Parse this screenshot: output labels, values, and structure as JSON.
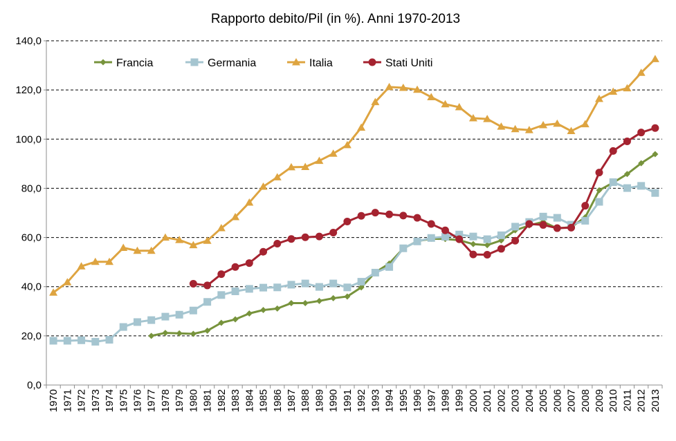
{
  "chart_data": {
    "type": "line",
    "title": "Rapporto debito/Pil (in %). Anni 1970-2013",
    "xlabel": "",
    "ylabel": "",
    "ylim": [
      0,
      140
    ],
    "yticks": [
      "0,0",
      "20,0",
      "40,0",
      "60,0",
      "80,0",
      "100,0",
      "120,0",
      "140,0"
    ],
    "grid": true,
    "legend_position": "top",
    "categories": [
      "1970",
      "1971",
      "1972",
      "1973",
      "1974",
      "1975",
      "1976",
      "1977",
      "1978",
      "1979",
      "1980",
      "1981",
      "1982",
      "1983",
      "1984",
      "1985",
      "1986",
      "1987",
      "1988",
      "1989",
      "1990",
      "1991",
      "1992",
      "1993",
      "1994",
      "1995",
      "1996",
      "1997",
      "1998",
      "1999",
      "2000",
      "2001",
      "2002",
      "2003",
      "2004",
      "2005",
      "2006",
      "2007",
      "2008",
      "2009",
      "2010",
      "2011",
      "2012",
      "2013"
    ],
    "series": [
      {
        "name": "Francia",
        "color": "#77933c",
        "marker": "diamond",
        "values": [
          null,
          null,
          null,
          null,
          null,
          null,
          null,
          20,
          21.2,
          21,
          20.8,
          22.1,
          25.3,
          26.7,
          29.1,
          30.5,
          31.1,
          33.3,
          33.3,
          34.2,
          35.3,
          36,
          39.7,
          45.8,
          49.4,
          55.5,
          58.5,
          59.5,
          59.4,
          58.9,
          57.3,
          56.9,
          58.8,
          62.9,
          64.9,
          66.4,
          63.7,
          64.2,
          68.2,
          79.2,
          82.3,
          85.8,
          90.2,
          93.9
        ]
      },
      {
        "name": "Germania",
        "color": "#a5c5d0",
        "marker": "square",
        "values": [
          18,
          18,
          18.2,
          17.6,
          18.4,
          23.6,
          25.6,
          26.4,
          27.8,
          28.6,
          30.3,
          33.8,
          36.6,
          38.1,
          39.1,
          39.6,
          39.7,
          40.8,
          41.3,
          39.9,
          41.3,
          39.7,
          42,
          45.7,
          48,
          55.6,
          58.4,
          59.8,
          60.3,
          61.2,
          60.4,
          59.3,
          60.9,
          64.4,
          66.3,
          68.5,
          68,
          65.2,
          66.8,
          74.5,
          82.5,
          80.1,
          81,
          78.1
        ]
      },
      {
        "name": "Italia",
        "color": "#dea440",
        "marker": "triangle",
        "values": [
          37.6,
          41.8,
          48.3,
          50.1,
          50.1,
          55.8,
          54.6,
          54.6,
          60,
          59,
          56.9,
          58.7,
          63.8,
          68.3,
          74.2,
          80.7,
          84.5,
          88.6,
          88.7,
          91.2,
          94.1,
          97.6,
          104.7,
          115.1,
          121.2,
          120.9,
          120.1,
          117.1,
          114.2,
          113,
          108.5,
          108.2,
          105.1,
          104.1,
          103.7,
          105.7,
          106.3,
          103.3,
          106.1,
          116.4,
          119.3,
          120.7,
          127,
          132.6
        ]
      },
      {
        "name": "Stati Uniti",
        "color": "#a52330",
        "marker": "circle",
        "values": [
          null,
          null,
          null,
          null,
          null,
          null,
          null,
          null,
          null,
          null,
          41.2,
          40.5,
          45.1,
          48,
          49.6,
          54.2,
          57.5,
          59.4,
          60.1,
          60.4,
          62,
          66.5,
          68.8,
          70.1,
          69.4,
          68.9,
          68,
          65.5,
          62.9,
          59.3,
          53.1,
          53,
          55.4,
          58.7,
          65.5,
          65.1,
          63.8,
          64,
          72.9,
          86.4,
          95.2,
          99.1,
          102.7,
          104.5
        ]
      }
    ]
  }
}
